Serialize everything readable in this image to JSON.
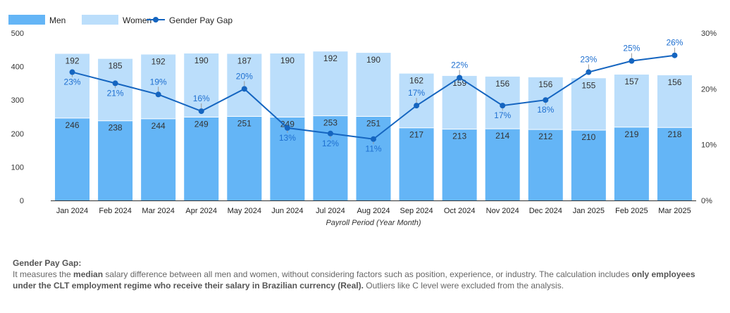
{
  "chart_data": {
    "type": "bar+line",
    "categories": [
      "Jan 2024",
      "Feb 2024",
      "Mar 2024",
      "Apr 2024",
      "May 2024",
      "Jun 2024",
      "Jul 2024",
      "Aug 2024",
      "Sep 2024",
      "Oct 2024",
      "Nov 2024",
      "Dec 2024",
      "Jan 2025",
      "Feb 2025",
      "Mar 2025"
    ],
    "series": [
      {
        "name": "Men",
        "type": "stacked-bar",
        "axis": "left",
        "color": "#64b5f6",
        "values": [
          246,
          238,
          244,
          249,
          251,
          249,
          253,
          251,
          217,
          213,
          214,
          212,
          210,
          219,
          218
        ]
      },
      {
        "name": "Women",
        "type": "stacked-bar",
        "axis": "left",
        "color": "#bbdefb",
        "values": [
          192,
          185,
          192,
          190,
          187,
          190,
          192,
          190,
          162,
          159,
          156,
          156,
          155,
          157,
          156
        ]
      },
      {
        "name": "Gender Pay Gap",
        "type": "line",
        "axis": "right",
        "color": "#1565c0",
        "values": [
          23,
          21,
          19,
          16,
          20,
          13,
          12,
          11,
          17,
          22,
          17,
          18,
          23,
          25,
          26
        ]
      }
    ],
    "xlabel": "Payroll Period (Year Month)",
    "ylim": [
      0,
      500
    ],
    "yticks": [
      0,
      100,
      200,
      300,
      400,
      500
    ],
    "y2lim": [
      0,
      30
    ],
    "y2ticks": [
      "0%",
      "10%",
      "20%",
      "30%"
    ],
    "legend": "top-left",
    "grid": false
  },
  "note": {
    "title": "Gender Pay Gap:",
    "t1": "It measures the ",
    "b1": "median",
    "t2": " salary difference between all men and women, without considering factors such as position, experience, or industry. The calculation includes ",
    "b2": "only employees under the CLT employment regime who receive their salary in Brazilian currency (Real).",
    "t3": " Outliers like C level were excluded from the analysis."
  }
}
